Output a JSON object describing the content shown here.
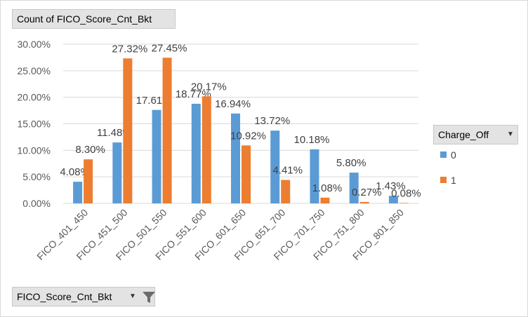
{
  "value_field_button": {
    "label": "Count of FICO_Score_Cnt_Bkt"
  },
  "axis_field_button": {
    "label": "FICO_Score_Cnt_Bkt",
    "dropdown_icon": "chevron-down-icon",
    "filter_icon": "funnel-filter-icon"
  },
  "legend_field_button": {
    "label": "Charge_Off",
    "dropdown_icon": "chevron-down-icon"
  },
  "chart_data": {
    "type": "bar",
    "categories": [
      "FICO_401_450",
      "FICO_451_500",
      "FICO_501_550",
      "FICO_551_600",
      "FICO_601_650",
      "FICO_651_700",
      "FICO_701_750",
      "FICO_751_800",
      "FICO_801_850"
    ],
    "series": [
      {
        "name": "0",
        "color": "#5b9bd5",
        "values": [
          4.08,
          11.48,
          17.61,
          18.77,
          16.94,
          13.72,
          10.18,
          5.8,
          1.43
        ],
        "labels": [
          "4.08%",
          "11.48%",
          "17.61%",
          "18.77%",
          "16.94%",
          "13.72%",
          "10.18%",
          "5.80%",
          "1.43%"
        ]
      },
      {
        "name": "1",
        "color": "#ed7d31",
        "values": [
          8.3,
          27.32,
          27.45,
          20.17,
          10.92,
          4.41,
          1.08,
          0.27,
          0.08
        ],
        "labels": [
          "8.30%",
          "27.32%",
          "27.45%",
          "20.17%",
          "10.92%",
          "4.41%",
          "1.08%",
          "0.27%",
          "0.08%"
        ]
      }
    ],
    "yticks": [
      "0.00%",
      "5.00%",
      "10.00%",
      "15.00%",
      "20.00%",
      "25.00%",
      "30.00%"
    ],
    "ylim": [
      0,
      30
    ],
    "grid": true,
    "legend_position": "right"
  }
}
